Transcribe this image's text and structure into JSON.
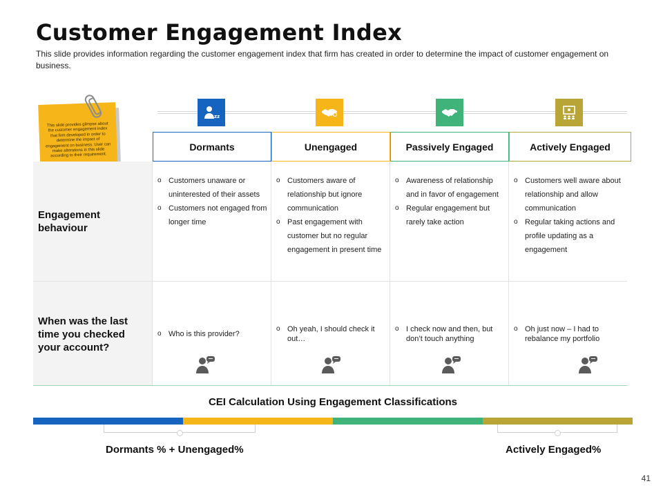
{
  "title": "Customer Engagement Index",
  "subtitle": "This slide provides information regarding the customer engagement index that firm has created in order to determine the impact of customer engagement on business.",
  "sticky_note": "This slide provides glimpse about the customer engagement index that firm developed in order to determine the impact of engagement on business. User can make alterations in this slide according to their requirement.",
  "categories": [
    {
      "label": "Dormants",
      "color": "#1565c0",
      "icon": "sleeping-user-icon"
    },
    {
      "label": "Unengaged",
      "color": "#f6b61a",
      "icon": "handshake-icon"
    },
    {
      "label": "Passively Engaged",
      "color": "#3fb37a",
      "icon": "handshake-icon"
    },
    {
      "label": "Actively Engaged",
      "color": "#b8a535",
      "icon": "presentation-icon"
    }
  ],
  "rows": [
    {
      "label": "Engagement behaviour",
      "cells": [
        [
          "Customers unaware or uninterested of their assets",
          "Customers not engaged from longer time"
        ],
        [
          "Customers aware of relationship but ignore communication",
          "Past engagement with customer but no regular engagement in present time"
        ],
        [
          "Awareness of relationship and in favor of engagement",
          "Regular engagement but rarely take action"
        ],
        [
          "Customers well aware about relationship and allow communication",
          "Regular taking actions and profile updating as a engagement"
        ]
      ]
    },
    {
      "label": "When was the last time you checked your account?",
      "cells": [
        [
          "Who is this provider?"
        ],
        [
          "Oh yeah, I should check it out…"
        ],
        [
          "I check now and then, but don’t touch anything"
        ],
        [
          "Oh just now – I had to rebalance my portfolio"
        ]
      ]
    }
  ],
  "cei": {
    "title": "CEI Calculation Using Engagement Classifications",
    "left_formula": "Dormants % + Unengaged%",
    "right_formula": "Actively Engaged%"
  },
  "page_number": "41"
}
